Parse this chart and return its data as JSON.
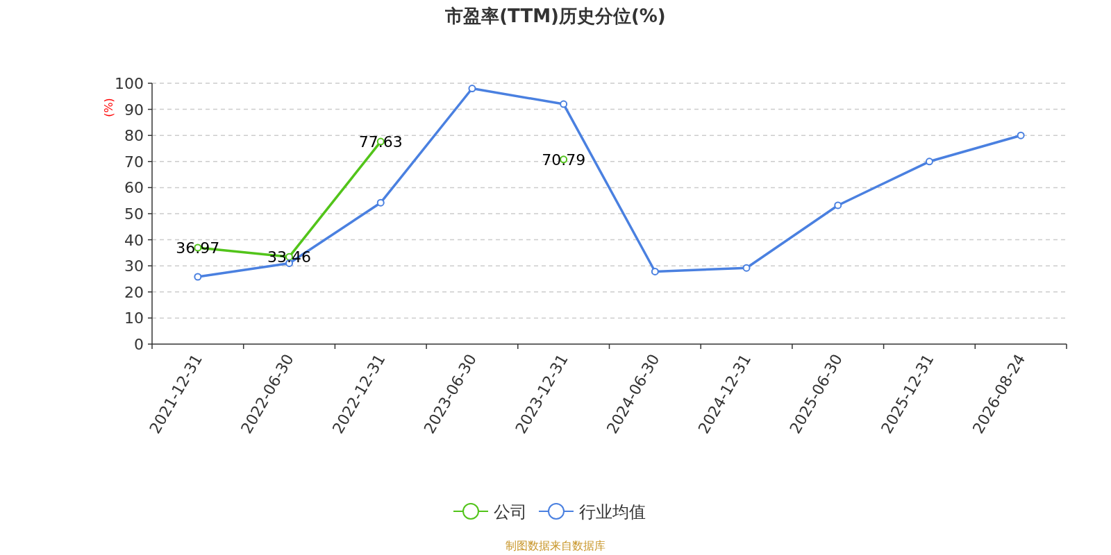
{
  "chart_data": {
    "type": "line",
    "title": "市盈率(TTM)历史分位(%)",
    "ylabel": "(%)",
    "categories": [
      "2021-12-31",
      "2022-06-30",
      "2022-12-31",
      "2023-06-30",
      "2023-12-31",
      "2024-06-30",
      "2024-12-31",
      "2025-06-30",
      "2025-12-31",
      "2026-08-24"
    ],
    "series": [
      {
        "name": "公司",
        "color": "#52c41a",
        "values": [
          36.97,
          33.46,
          77.63,
          null,
          70.79,
          null,
          null,
          null,
          null,
          null
        ],
        "value_labels": [
          "36.97",
          "33.46",
          "77.63",
          null,
          "70.79",
          null,
          null,
          null,
          null,
          null
        ]
      },
      {
        "name": "行业均值",
        "color": "#4a80e0",
        "values": [
          25.8,
          31,
          54.2,
          98,
          92,
          27.8,
          29.2,
          53.2,
          70,
          80
        ]
      }
    ],
    "ylim": [
      0,
      100
    ],
    "yticks": [
      0,
      10,
      20,
      30,
      40,
      50,
      60,
      70,
      80,
      90,
      100
    ],
    "grid": "y",
    "legend": "bottom",
    "marker": "circle",
    "line_style": "solid",
    "annotations": [
      "制图数据来自数据库"
    ]
  }
}
